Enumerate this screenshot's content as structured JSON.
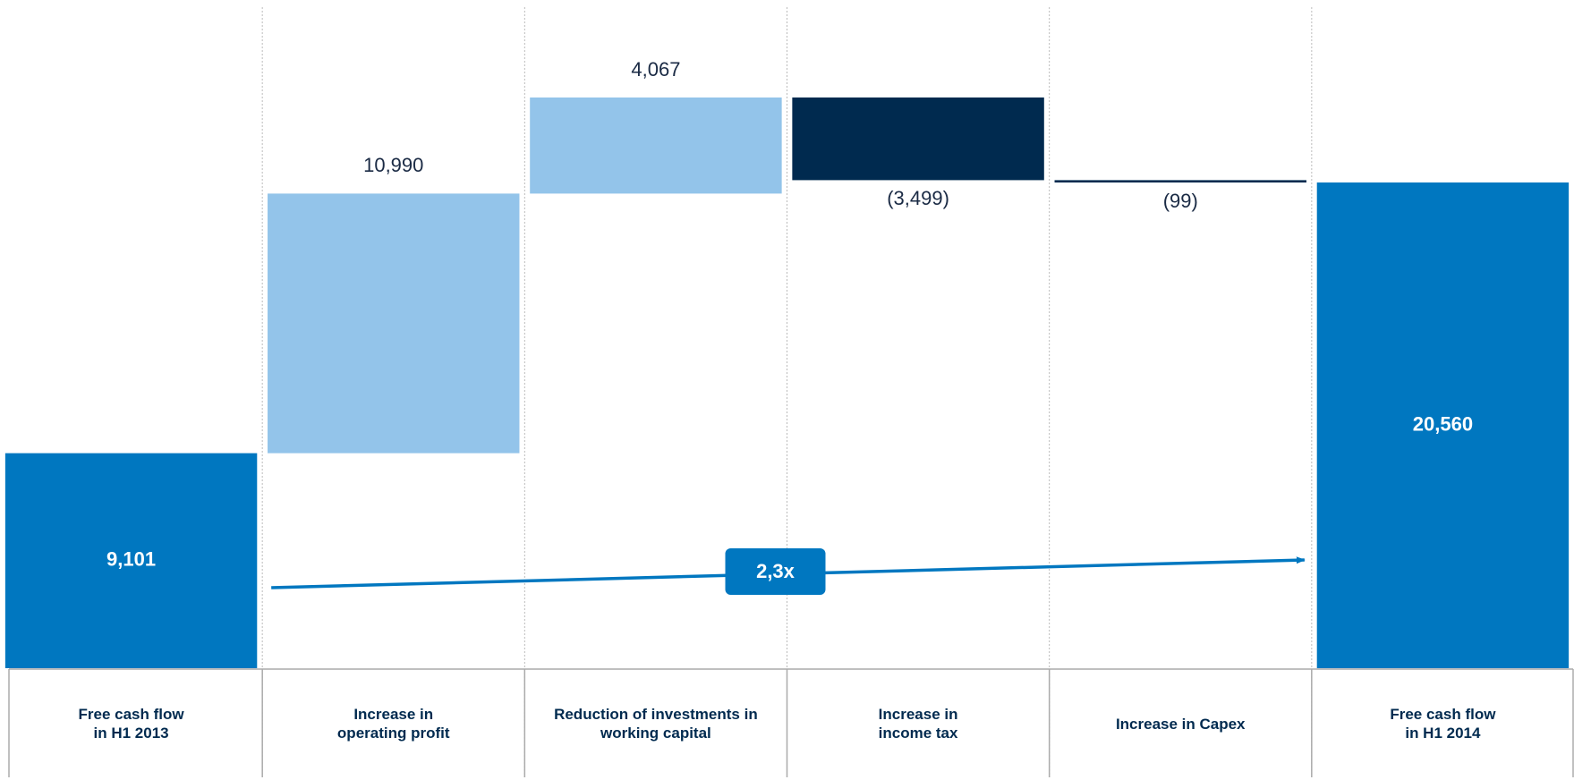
{
  "chart_data": {
    "type": "waterfall",
    "categories": [
      "Free cash flow\nin H1 2013",
      "Increase in\noperating profit",
      "Reduction of investments in\nworking capital",
      "Increase in\nincome tax",
      "Increase in Capex",
      "Free cash flow\nin H1 2014"
    ],
    "values": [
      9101,
      10990,
      4067,
      -3499,
      -99,
      20560
    ],
    "value_labels": [
      "9,101",
      "10,990",
      "4,067",
      "(3,499)",
      "(99)",
      "20,560"
    ],
    "colors": [
      "#0077c0",
      "#93c4ea",
      "#93c4ea",
      "#002a4f",
      "#002a4f",
      "#0077c0"
    ],
    "annotation": "2,3x"
  }
}
